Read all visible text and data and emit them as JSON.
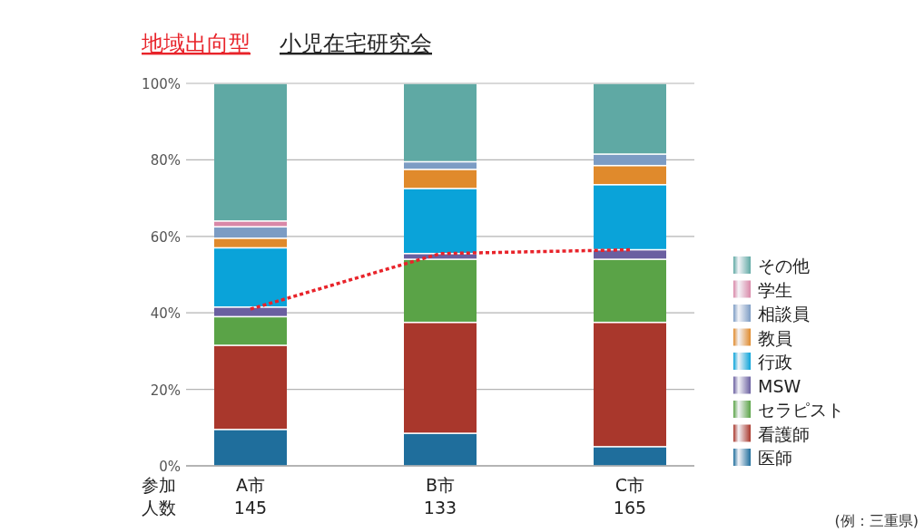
{
  "chart_data": {
    "type": "bar",
    "stacked": true,
    "title": "地域出向型",
    "subtitle": "小児在宅研究会",
    "categories": [
      "A市\n145",
      "B市\n133",
      "C市\n165"
    ],
    "ylim": [
      0,
      100
    ],
    "yticks": [
      {
        "value": 0,
        "label": "0%"
      },
      {
        "value": 20,
        "label": "20%"
      },
      {
        "value": 40,
        "label": "40%"
      },
      {
        "value": 60,
        "label": "60%"
      },
      {
        "value": 80,
        "label": "80%"
      },
      {
        "value": 100,
        "label": "100%"
      }
    ],
    "grid": "y",
    "legend": "right",
    "series": [
      {
        "name": "医師",
        "color": "#1f6e9c",
        "values": [
          9.5,
          8.5,
          5
        ]
      },
      {
        "name": "看護師",
        "color": "#a9372c",
        "values": [
          22,
          29,
          32.5
        ]
      },
      {
        "name": "セラピスト",
        "color": "#5aa347",
        "values": [
          7.5,
          16.5,
          16.5
        ]
      },
      {
        "name": "MSW",
        "color": "#6a5fa0",
        "values": [
          2.5,
          1.5,
          2.5
        ]
      },
      {
        "name": "行政",
        "color": "#0aa3d9",
        "values": [
          15.5,
          17,
          17
        ]
      },
      {
        "name": "教員",
        "color": "#e08a2c",
        "values": [
          2.5,
          5,
          5
        ]
      },
      {
        "name": "相談員",
        "color": "#7c9cc4",
        "values": [
          3,
          2,
          3
        ]
      },
      {
        "name": "学生",
        "color": "#d988a8",
        "values": [
          1.5,
          0,
          0
        ]
      },
      {
        "name": "その他",
        "color": "#5fa9a4",
        "values": [
          36,
          20.5,
          18.5
        ]
      },
      {
        "type": "line",
        "color": "#e8232a",
        "line_style": "dotted",
        "values": [
          41,
          55.5,
          56.5
        ]
      }
    ],
    "annotations": [
      "参加人数",
      "(例：三重県)"
    ]
  }
}
